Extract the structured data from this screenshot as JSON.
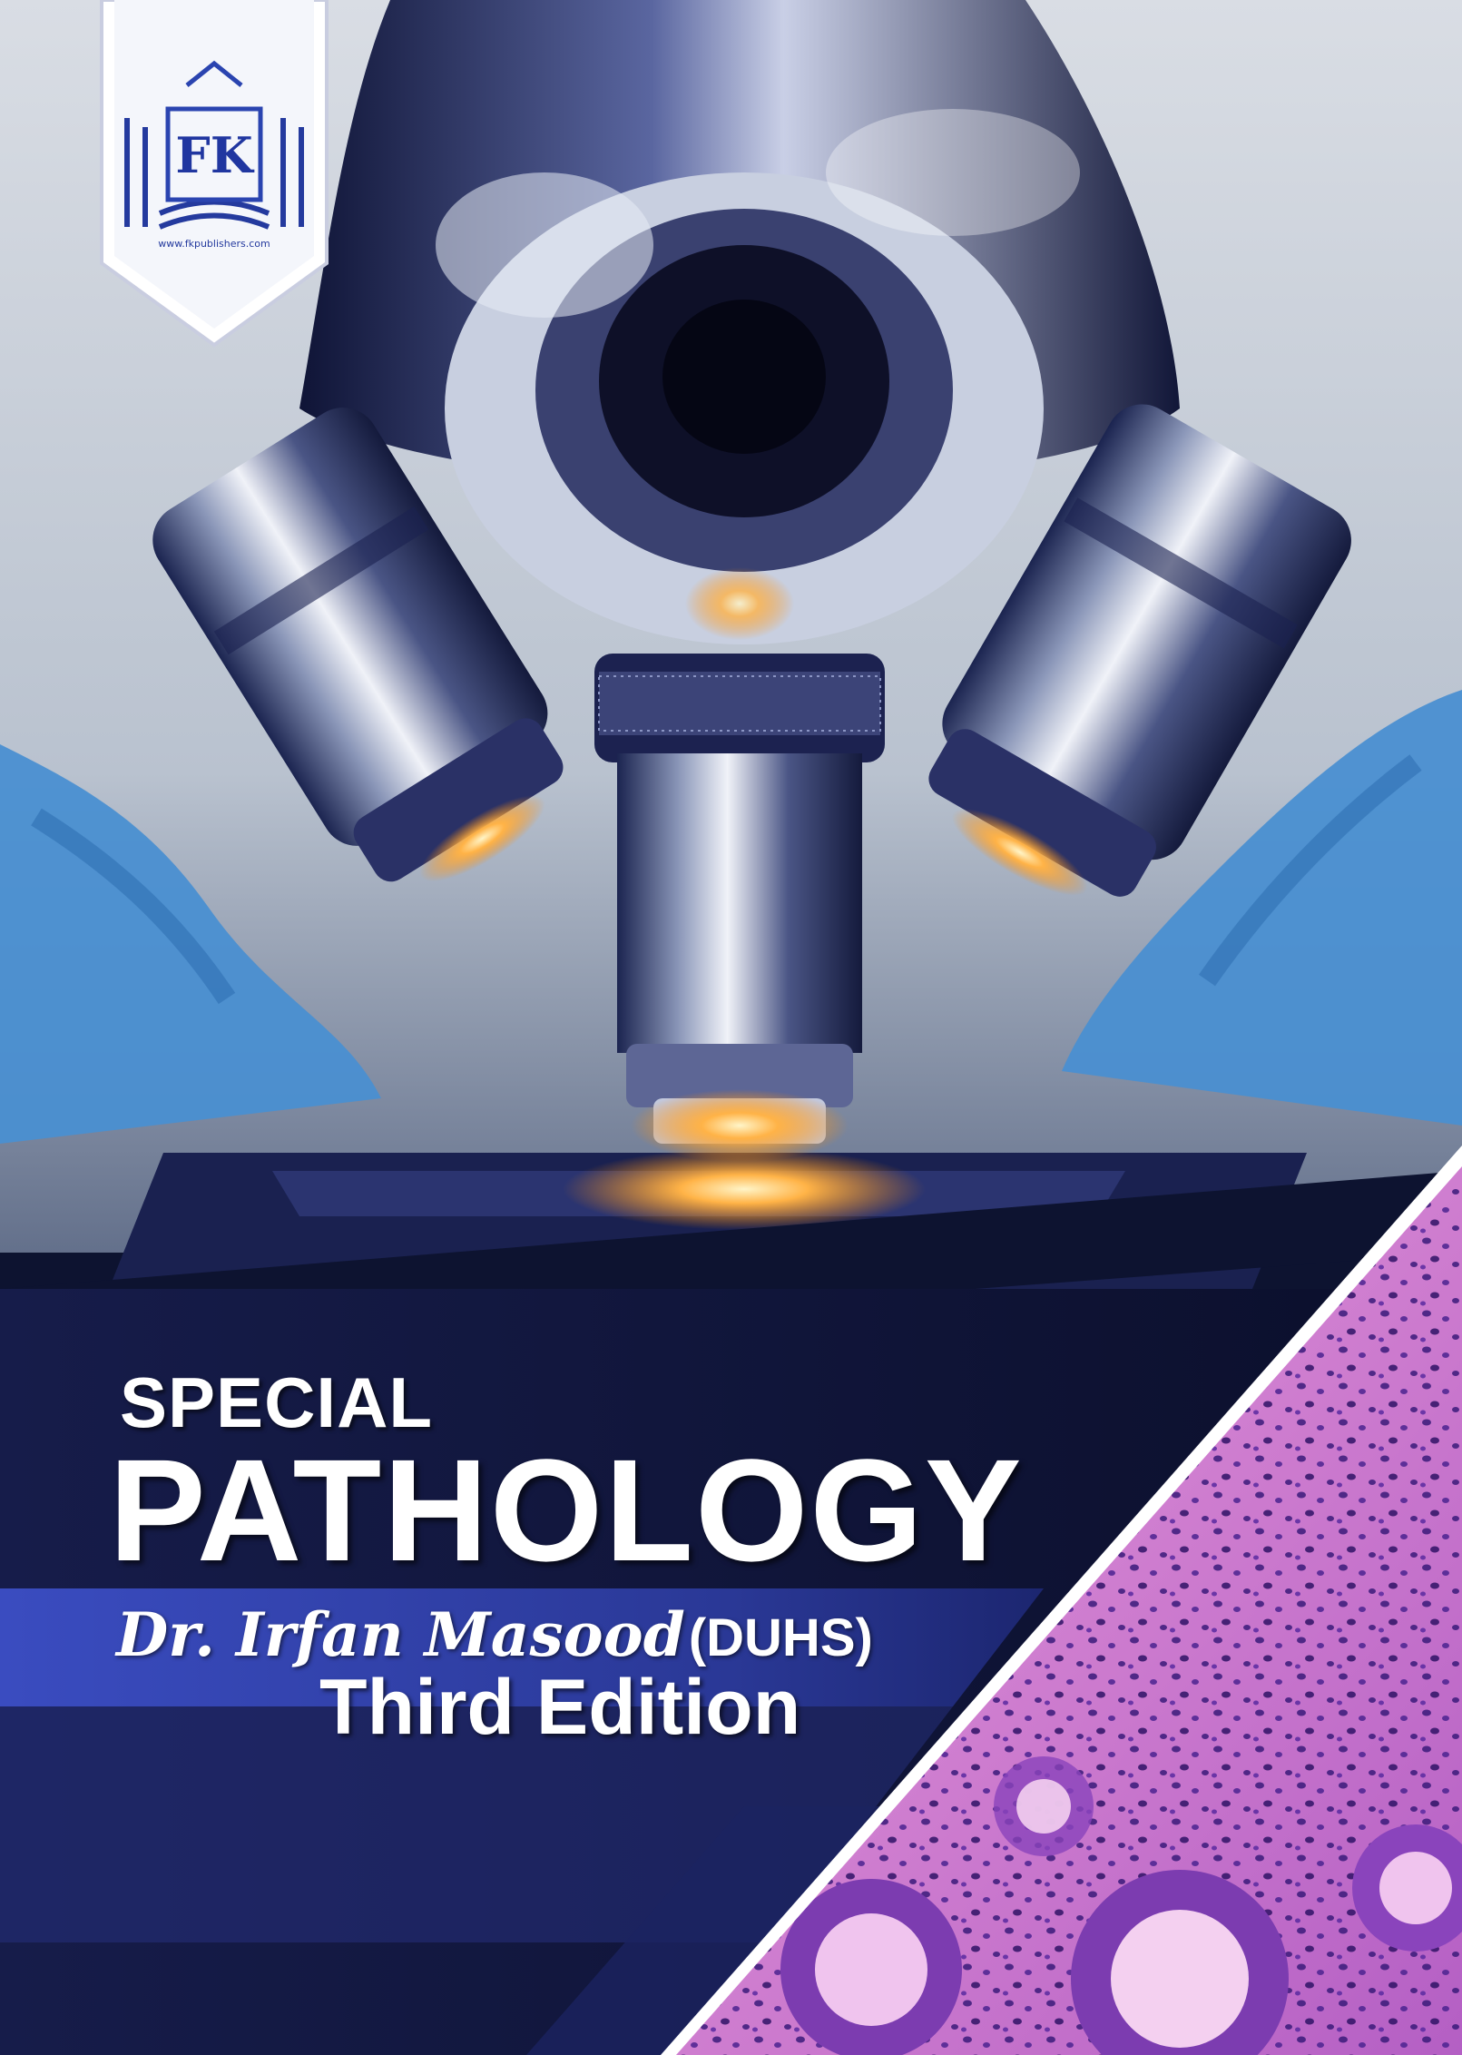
{
  "cover": {
    "title_line1": "SPECIAL",
    "title_line2": "PATHOLOGY",
    "author_name": "Dr. Irfan Masood",
    "author_affiliation": "(DUHS)",
    "edition": "Third Edition"
  },
  "publisher": {
    "logo_monogram": "FK",
    "logo_caption": "www.fkpublishers.com"
  },
  "colors": {
    "navy": "#0d1330",
    "blue_band": "#2e3fa8",
    "stain_pink": "#d68ad4",
    "nuclei_purple": "#3a1a7a",
    "glove_blue": "#4a8fd1"
  }
}
